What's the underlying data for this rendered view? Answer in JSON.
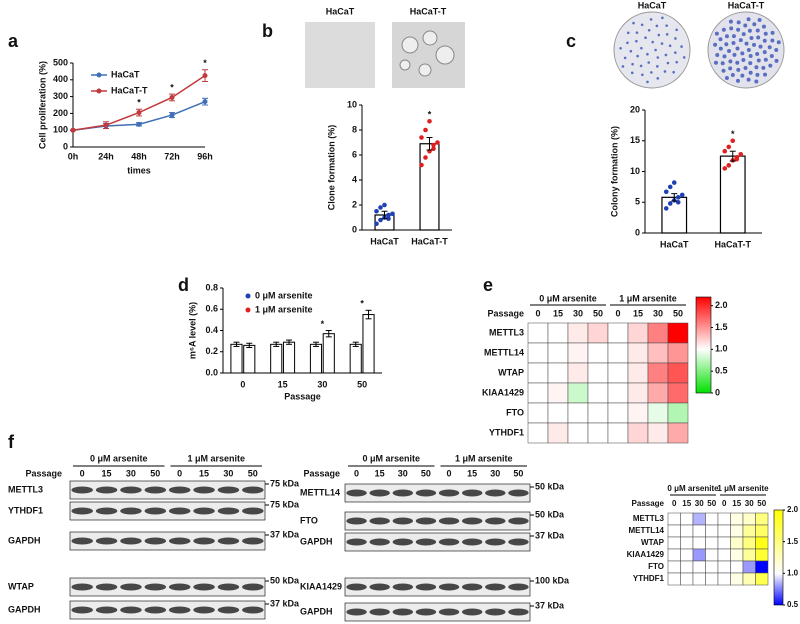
{
  "panels": [
    "a",
    "b",
    "c",
    "d",
    "e",
    "f"
  ],
  "images": [
    {
      "labels": [
        "HaCaT",
        "HaCaT-T"
      ]
    },
    {
      "labels": [
        "HaCaT",
        "HaCaT-T"
      ]
    }
  ],
  "chart_data": [
    {
      "type": "line",
      "ylabel": "Cell proliferation (%)",
      "xlabel": "times",
      "categories": [
        "0h",
        "24h",
        "48h",
        "72h",
        "96h"
      ],
      "series": [
        {
          "name": "HaCaT",
          "color": "#3f6fb6",
          "values": [
            100,
            125,
            135,
            190,
            270
          ],
          "errors": [
            0,
            15,
            10,
            15,
            20
          ]
        },
        {
          "name": "HaCaT-T",
          "color": "#c0393b",
          "values": [
            100,
            130,
            205,
            295,
            425
          ],
          "errors": [
            0,
            20,
            20,
            20,
            35
          ]
        }
      ],
      "ylim": [
        0,
        500
      ],
      "yticks": [
        0,
        100,
        200,
        300,
        400,
        500
      ],
      "annotations": [
        {
          "text": "*",
          "category": "48h"
        },
        {
          "text": "*",
          "category": "72h"
        },
        {
          "text": "*",
          "category": "96h"
        }
      ]
    },
    {
      "type": "bar",
      "ylabel": "Clone formation (%)",
      "categories": [
        "HaCaT",
        "HaCaT-T"
      ],
      "values": [
        1.2,
        6.9
      ],
      "errors": [
        0.3,
        0.5
      ],
      "point_colors": [
        "#1f3fb5",
        "#e02020"
      ],
      "points": [
        [
          0.5,
          0.8,
          1.0,
          1.2,
          1.3,
          1.5,
          1.8,
          2.0,
          0.9
        ],
        [
          5.2,
          5.8,
          6.3,
          6.8,
          7.0,
          7.4,
          8.0,
          8.7,
          6.5
        ]
      ],
      "ylim": [
        0,
        10
      ],
      "yticks": [
        0,
        2,
        4,
        6,
        8,
        10
      ],
      "annotations": [
        {
          "text": "*",
          "category": "HaCaT-T"
        }
      ]
    },
    {
      "type": "bar",
      "ylabel": "Colony formation (%)",
      "categories": [
        "HaCaT",
        "HaCaT-T"
      ],
      "values": [
        5.8,
        12.5
      ],
      "errors": [
        0.6,
        0.8
      ],
      "point_colors": [
        "#1f3fb5",
        "#e02020"
      ],
      "points": [
        [
          4,
          4.8,
          5.3,
          5.8,
          6.2,
          6.7,
          7.5,
          8.2,
          5
        ],
        [
          10.5,
          11,
          11.8,
          12.3,
          12.8,
          13.3,
          14,
          15,
          12
        ]
      ],
      "ylim": [
        0,
        20
      ],
      "yticks": [
        0,
        5,
        10,
        15,
        20
      ],
      "annotations": [
        {
          "text": "*",
          "category": "HaCaT-T"
        }
      ]
    },
    {
      "type": "bar",
      "ylabel": "m⁶A level (%)",
      "xlabel": "Passage",
      "categories": [
        "0",
        "15",
        "30",
        "50"
      ],
      "series": [
        {
          "name": "0 μM arsenite",
          "color": "#1f3fb5",
          "values": [
            0.27,
            0.27,
            0.27,
            0.27
          ],
          "errors": [
            0.02,
            0.02,
            0.02,
            0.02
          ]
        },
        {
          "name": "1 μM arsenite",
          "color": "#e02020",
          "values": [
            0.26,
            0.29,
            0.37,
            0.55
          ],
          "errors": [
            0.02,
            0.02,
            0.03,
            0.04
          ]
        }
      ],
      "ylim": [
        0,
        0.8
      ],
      "yticks": [
        {
          "value": 0,
          "label": "0.0"
        },
        0.2,
        0.4,
        0.6,
        0.8
      ],
      "annotations": [
        {
          "text": "*",
          "category": "30"
        },
        {
          "text": "*",
          "category": "50"
        }
      ]
    },
    {
      "type": "heatmap",
      "groups": [
        "0 μM arsenite",
        "1 μM arsenite"
      ],
      "passage": "Passage",
      "columns": [
        "0",
        "15",
        "30",
        "50",
        "0",
        "15",
        "30",
        "50"
      ],
      "rows": [
        "METTL3",
        "METTL14",
        "WTAP",
        "KIAA1429",
        "FTO",
        "YTHDF1"
      ],
      "values": [
        [
          1,
          1,
          1.1,
          1.2,
          1,
          1.2,
          1.6,
          2.2
        ],
        [
          1,
          1,
          1.05,
          1,
          1,
          1.1,
          1.3,
          1.5
        ],
        [
          1,
          1,
          1.1,
          1,
          1,
          1.1,
          1.6,
          1.8
        ],
        [
          1,
          1.05,
          0.8,
          1,
          1,
          1.1,
          1.4,
          1.7
        ],
        [
          1,
          1,
          1,
          1,
          1,
          1.05,
          0.9,
          0.7
        ],
        [
          1,
          1.1,
          1,
          1,
          1,
          1.2,
          1.1,
          1.4
        ]
      ],
      "colors": [
        "#00e000",
        "#ffffff",
        "#ff0000"
      ],
      "clim": [
        0,
        2.2
      ],
      "cmid": 1,
      "cticks": [
        0,
        0.5,
        {
          "value": 1,
          "label": "1.0"
        },
        1.5,
        {
          "value": 2,
          "label": "2.0"
        }
      ]
    },
    {
      "type": "heatmap",
      "groups": [
        "0 μM arsenite",
        "1 μM arsenite"
      ],
      "passage": "Passage",
      "columns": [
        "0",
        "15",
        "30",
        "50",
        "0",
        "15",
        "30",
        "50"
      ],
      "rows": [
        "METTL3",
        "METTL14",
        "WTAP",
        "KIAA1429",
        "FTO",
        "YTHDF1"
      ],
      "values": [
        [
          1,
          1,
          0.85,
          1,
          1,
          1.1,
          1.2,
          1.5
        ],
        [
          1,
          1,
          1,
          1,
          1,
          1.1,
          1.4,
          1.6
        ],
        [
          1,
          1,
          1,
          1,
          1,
          1.2,
          1.5,
          1.9
        ],
        [
          1,
          1,
          0.8,
          1,
          1,
          1.1,
          1.4,
          1.8
        ],
        [
          1,
          1,
          1,
          1,
          1,
          1,
          0.8,
          0.5
        ],
        [
          1,
          1,
          1,
          1,
          1,
          1.1,
          1.3,
          1.7
        ]
      ],
      "colors": [
        "#0000ff",
        "#ffffff",
        "#ffff00"
      ],
      "clim": [
        0.5,
        2
      ],
      "cmid": 1,
      "cticks": [
        0.5,
        {
          "value": 1,
          "label": "1.0"
        },
        1.5,
        {
          "value": 2,
          "label": "2.0"
        }
      ]
    }
  ],
  "blots": [
    {
      "groups": [
        "0 μM arsenite",
        "1 μM arsenite"
      ],
      "passage": "Passage",
      "lanes": [
        "0",
        "15",
        "30",
        "50",
        "0",
        "15",
        "30",
        "50"
      ],
      "rows": [
        {
          "label": "METTL3",
          "size": "75 kDa"
        },
        {
          "label": "YTHDF1",
          "size": "75 kDa"
        },
        {
          "label": "GAPDH",
          "size": "37 kDa"
        },
        {
          "label": "WTAP",
          "size": "50 kDa"
        },
        {
          "label": "GAPDH",
          "size": "37 kDa"
        }
      ]
    },
    {
      "groups": [
        "0 μM arsenite",
        "1 μM arsenite"
      ],
      "passage": "Passage",
      "lanes": [
        "0",
        "15",
        "30",
        "50",
        "0",
        "15",
        "30",
        "50"
      ],
      "rows": [
        {
          "label": "METTL14",
          "size": "50 kDa"
        },
        {
          "label": "FTO",
          "size": "50 kDa"
        },
        {
          "label": "GAPDH",
          "size": "37 kDa"
        },
        {
          "label": "KIAA1429",
          "size": "100 kDa"
        },
        {
          "label": "GAPDH",
          "size": "37 kDa"
        }
      ]
    }
  ]
}
